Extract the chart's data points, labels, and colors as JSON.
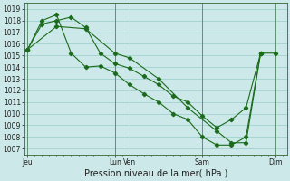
{
  "xlabel": "Pression niveau de la mer( hPa )",
  "background_color": "#cce8e8",
  "grid_color": "#99cccc",
  "line_color": "#1a6b1a",
  "spine_color": "#336633",
  "ylim": [
    1006.5,
    1019.5
  ],
  "yticks": [
    1007,
    1008,
    1009,
    1010,
    1011,
    1012,
    1013,
    1014,
    1015,
    1016,
    1017,
    1018,
    1019
  ],
  "xtick_labels": [
    "Jeu",
    "Lun",
    "Ven",
    "Sam",
    "Dim"
  ],
  "xtick_positions": [
    0,
    6,
    7,
    12,
    17
  ],
  "xlim": [
    -0.2,
    17.8
  ],
  "series": [
    {
      "x": [
        0,
        1,
        2,
        3,
        4,
        5,
        6,
        7,
        8,
        9,
        10,
        11,
        12,
        13,
        14,
        15,
        16
      ],
      "y": [
        1015.5,
        1017.7,
        1018.0,
        1018.3,
        1017.4,
        1015.2,
        1014.3,
        1013.9,
        1013.2,
        1012.5,
        1011.5,
        1011.0,
        1009.8,
        1008.8,
        1009.5,
        1010.5,
        1015.2
      ]
    },
    {
      "x": [
        0,
        1,
        2,
        3,
        4,
        5,
        6,
        7,
        8,
        9,
        10,
        11,
        12,
        13,
        14,
        15,
        16
      ],
      "y": [
        1015.5,
        1018.0,
        1018.5,
        1015.2,
        1014.0,
        1014.1,
        1013.5,
        1012.5,
        1011.7,
        1011.0,
        1010.0,
        1009.5,
        1008.0,
        1007.3,
        1007.3,
        1008.0,
        1015.2
      ]
    },
    {
      "x": [
        0,
        2,
        4,
        6,
        7,
        9,
        11,
        13,
        14,
        15,
        16,
        17
      ],
      "y": [
        1015.5,
        1017.5,
        1017.3,
        1015.2,
        1014.8,
        1013.0,
        1010.5,
        1008.5,
        1007.5,
        1007.5,
        1015.2,
        1015.2
      ]
    }
  ],
  "label_fontsize": 6.0,
  "tick_fontsize": 5.5,
  "xlabel_fontsize": 7.0,
  "linewidth": 0.8,
  "markersize": 2.2
}
